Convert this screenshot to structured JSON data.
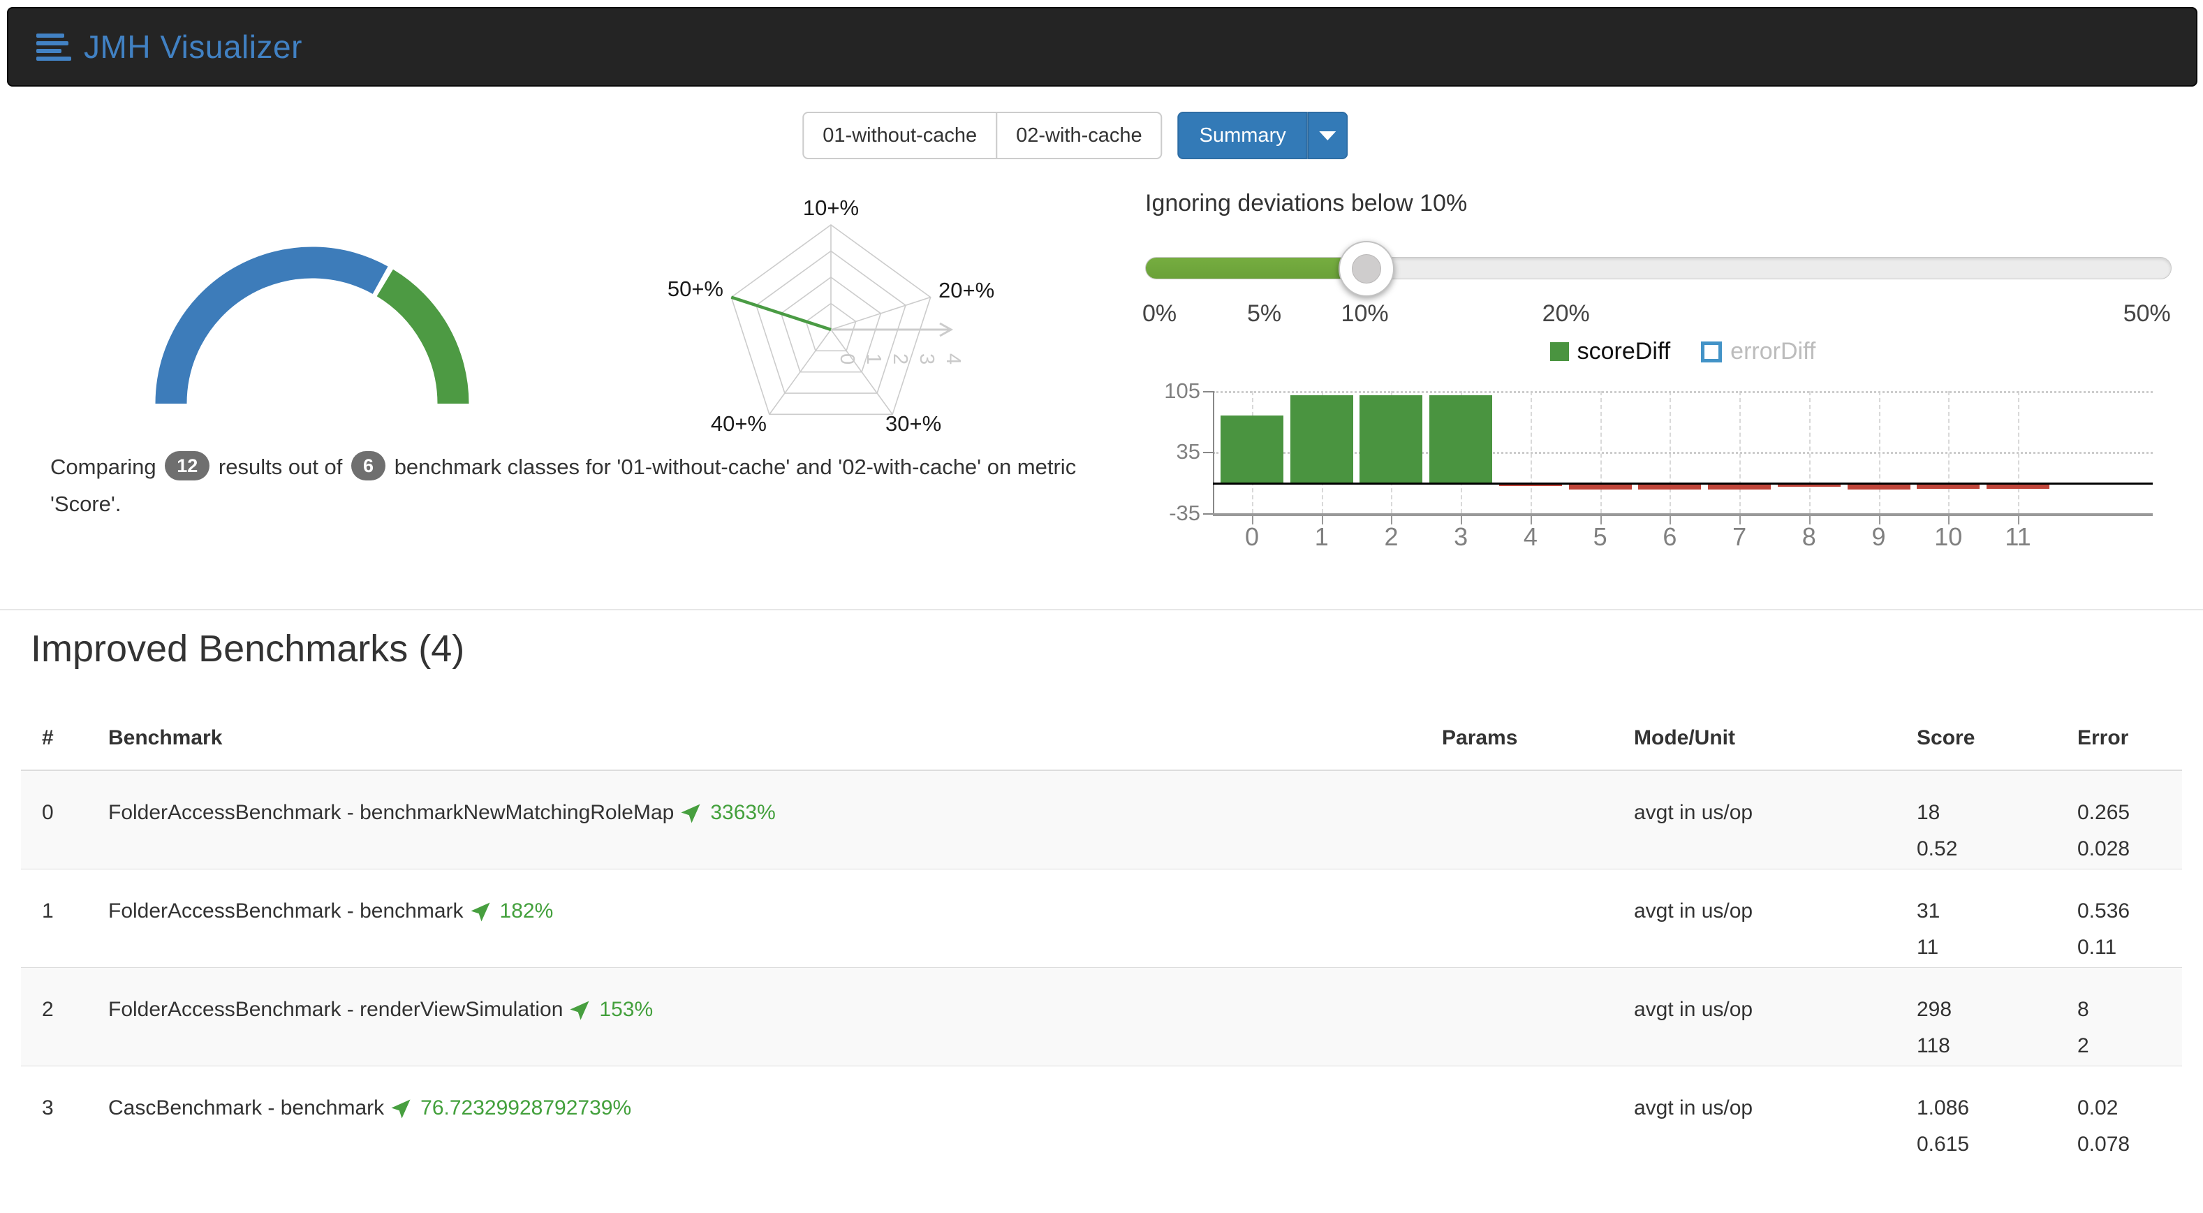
{
  "navbar": {
    "brand": "JMH Visualizer"
  },
  "tabs": {
    "runs": [
      "01-without-cache",
      "02-with-cache"
    ],
    "summary_label": "Summary"
  },
  "summary_text": {
    "prefix": "Comparing",
    "results_count": "12",
    "middle": "results out of",
    "classes_count": "6",
    "suffix": "benchmark classes for '01-without-cache' and '02-with-cache' on metric 'Score'."
  },
  "slider": {
    "title": "Ignoring deviations below 10%",
    "value_label": "10%",
    "handle_pos": 21.4,
    "fill_color": "#76ad40",
    "ticks": [
      {
        "label": "0%",
        "pos": 1.4
      },
      {
        "label": "5%",
        "pos": 11.6
      },
      {
        "label": "10%",
        "pos": 21.4
      },
      {
        "label": "20%",
        "pos": 41.0
      },
      {
        "label": "50%",
        "pos": 97.6
      }
    ]
  },
  "chart_data": [
    {
      "type": "pie",
      "variant": "half-donut-gauge",
      "title": "",
      "segments": [
        {
          "name": "other-results",
          "value": 8,
          "color": "#3d7cba"
        },
        {
          "name": "improved-results",
          "value": 4,
          "color": "#4d9a43"
        }
      ]
    },
    {
      "type": "radar",
      "title": "",
      "axes": [
        "10+%",
        "20+%",
        "30+%",
        "40+%",
        "50+%"
      ],
      "rings": 4,
      "axis_ticks": [
        "0",
        "1",
        "2",
        "3",
        "4"
      ],
      "axis_max": 4,
      "series": [
        {
          "name": "improvement-distribution",
          "color": "#4a9b44",
          "values": [
            0,
            0,
            0,
            0,
            4
          ]
        }
      ]
    },
    {
      "type": "bar",
      "title": "",
      "categories": [
        "0",
        "1",
        "2",
        "3",
        "4",
        "5",
        "6",
        "7",
        "8",
        "9",
        "10",
        "11"
      ],
      "series": [
        {
          "name": "scoreDiff",
          "color": "#4a9440",
          "negative_color": "#c0453a",
          "active": true,
          "values": [
            76.7,
            100,
            100,
            100,
            -4,
            -8,
            -8,
            -8,
            -5,
            -8,
            -7,
            -7
          ]
        },
        {
          "name": "errorDiff",
          "color": "#4393c7",
          "active": false,
          "values": []
        }
      ],
      "legend": [
        {
          "label": "scoreDiff",
          "color": "#4a9440",
          "active": true
        },
        {
          "label": "errorDiff",
          "color": "#4393c7",
          "active": false
        }
      ],
      "ylim": [
        -35,
        105
      ],
      "yticks": [
        105,
        35,
        -35
      ],
      "grid": true,
      "legend_position": "top"
    }
  ],
  "section": {
    "title": "Improved Benchmarks (4)"
  },
  "table": {
    "headers": [
      "#",
      "Benchmark",
      "Params",
      "Mode/Unit",
      "Score",
      "Error"
    ],
    "rows": [
      {
        "index": "0",
        "name": "FolderAccessBenchmark - benchmarkNewMatchingRoleMap",
        "diff": "3363%",
        "params": "",
        "mode_unit": "avgt in us/op",
        "score": [
          "18",
          "0.52"
        ],
        "error": [
          "0.265",
          "0.028"
        ]
      },
      {
        "index": "1",
        "name": "FolderAccessBenchmark - benchmark",
        "diff": "182%",
        "params": "",
        "mode_unit": "avgt in us/op",
        "score": [
          "31",
          "11"
        ],
        "error": [
          "0.536",
          "0.11"
        ]
      },
      {
        "index": "2",
        "name": "FolderAccessBenchmark - renderViewSimulation",
        "diff": "153%",
        "params": "",
        "mode_unit": "avgt in us/op",
        "score": [
          "298",
          "118"
        ],
        "error": [
          "8",
          "2"
        ]
      },
      {
        "index": "3",
        "name": "CascBenchmark - benchmark",
        "diff": "76.72329928792739%",
        "params": "",
        "mode_unit": "avgt in us/op",
        "score": [
          "1.086",
          "0.615"
        ],
        "error": [
          "0.02",
          "0.078"
        ]
      }
    ]
  }
}
